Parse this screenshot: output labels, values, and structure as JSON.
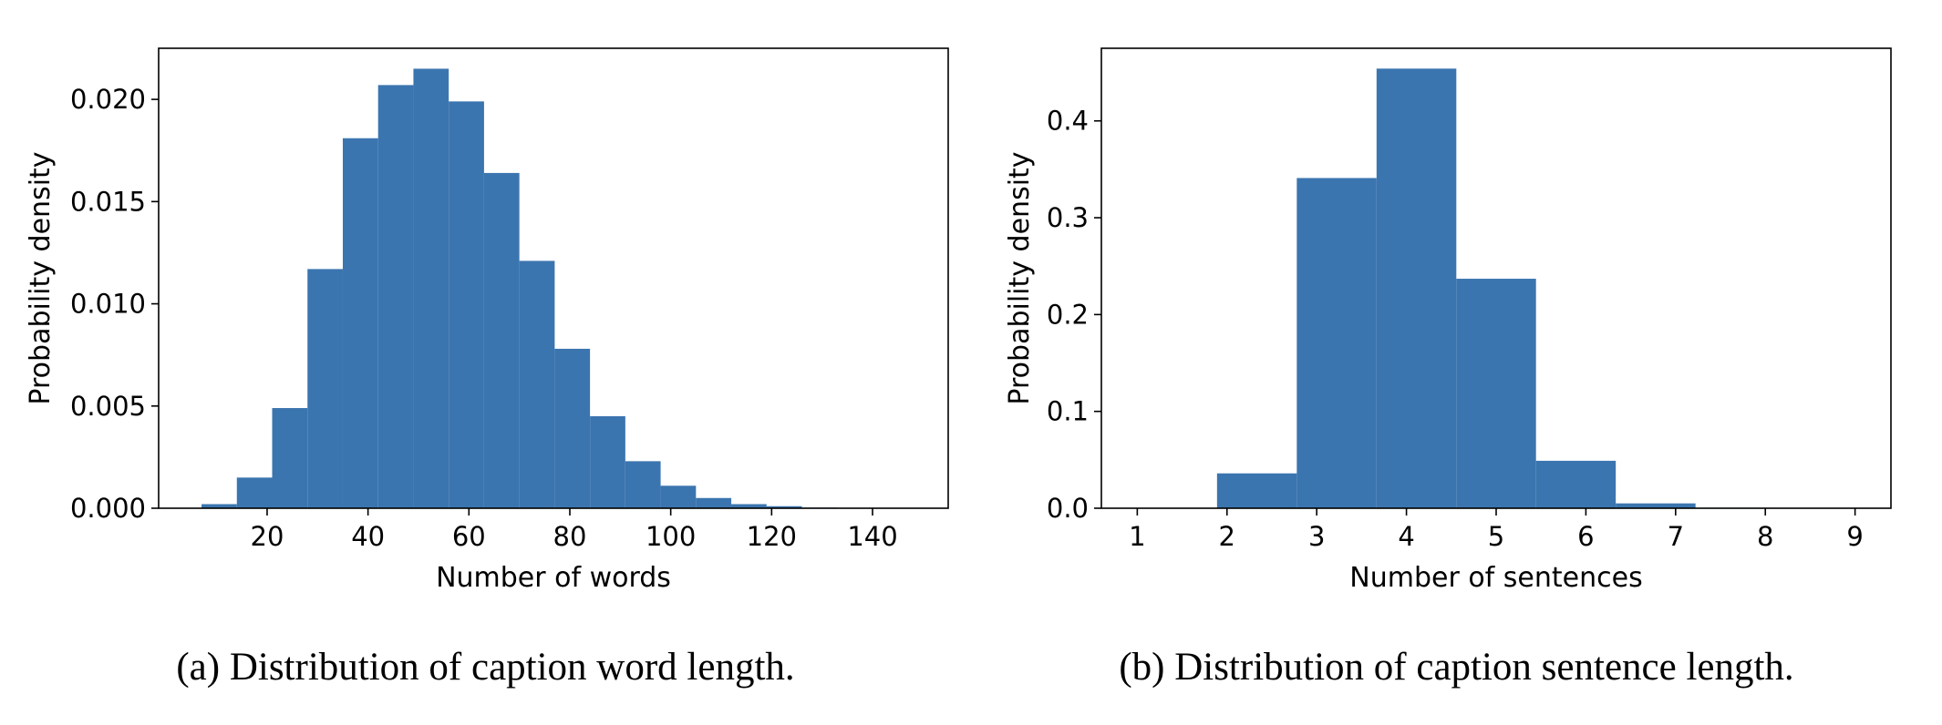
{
  "chart_data": [
    {
      "type": "bar",
      "subtype": "histogram",
      "title": "",
      "xlabel": "Number of words",
      "ylabel": "Probability density",
      "xlim": [
        -1.5,
        155
      ],
      "ylim": [
        0,
        0.0225
      ],
      "xticks": [
        20,
        40,
        60,
        80,
        100,
        120,
        140
      ],
      "yticks": [
        "0.000",
        "0.005",
        "0.010",
        "0.015",
        "0.020"
      ],
      "bar_color": "#3b75af",
      "bins": [
        {
          "x0": 7,
          "x1": 14,
          "value": 0.0002
        },
        {
          "x0": 14,
          "x1": 21,
          "value": 0.0015
        },
        {
          "x0": 21,
          "x1": 28,
          "value": 0.0049
        },
        {
          "x0": 28,
          "x1": 35,
          "value": 0.0117
        },
        {
          "x0": 35,
          "x1": 42,
          "value": 0.0181
        },
        {
          "x0": 42,
          "x1": 49,
          "value": 0.0207
        },
        {
          "x0": 49,
          "x1": 56,
          "value": 0.0215
        },
        {
          "x0": 56,
          "x1": 63,
          "value": 0.0199
        },
        {
          "x0": 63,
          "x1": 70,
          "value": 0.0164
        },
        {
          "x0": 70,
          "x1": 77,
          "value": 0.0121
        },
        {
          "x0": 77,
          "x1": 84,
          "value": 0.0078
        },
        {
          "x0": 84,
          "x1": 91,
          "value": 0.0045
        },
        {
          "x0": 91,
          "x1": 98,
          "value": 0.0023
        },
        {
          "x0": 98,
          "x1": 105,
          "value": 0.0011
        },
        {
          "x0": 105,
          "x1": 112,
          "value": 0.0005
        },
        {
          "x0": 112,
          "x1": 119,
          "value": 0.0002
        },
        {
          "x0": 119,
          "x1": 126,
          "value": 0.0001
        },
        {
          "x0": 126,
          "x1": 133,
          "value": 3e-05
        },
        {
          "x0": 133,
          "x1": 140,
          "value": 2e-05
        },
        {
          "x0": 140,
          "x1": 147,
          "value": 1e-05
        }
      ]
    },
    {
      "type": "bar",
      "subtype": "histogram",
      "title": "",
      "xlabel": "Number of sentences",
      "ylabel": "Probability density",
      "xlim": [
        0.6,
        9.4
      ],
      "ylim": [
        0,
        0.475
      ],
      "xticks": [
        1,
        2,
        3,
        4,
        5,
        6,
        7,
        8,
        9
      ],
      "yticks": [
        "0.0",
        "0.1",
        "0.2",
        "0.3",
        "0.4"
      ],
      "bar_color": "#3b75af",
      "bins": [
        {
          "x0": 1.0,
          "x1": 1.889,
          "value": 0.0
        },
        {
          "x0": 1.889,
          "x1": 2.778,
          "value": 0.036
        },
        {
          "x0": 2.778,
          "x1": 3.667,
          "value": 0.341
        },
        {
          "x0": 3.667,
          "x1": 4.556,
          "value": 0.454
        },
        {
          "x0": 4.556,
          "x1": 5.444,
          "value": 0.237
        },
        {
          "x0": 5.444,
          "x1": 6.333,
          "value": 0.049
        },
        {
          "x0": 6.333,
          "x1": 7.222,
          "value": 0.005
        },
        {
          "x0": 7.222,
          "x1": 8.111,
          "value": 0.0005
        },
        {
          "x0": 8.111,
          "x1": 9.0,
          "value": 0.0002
        }
      ]
    }
  ],
  "captions": [
    "(a) Distribution of caption word length.",
    "(b) Distribution of caption sentence length."
  ]
}
